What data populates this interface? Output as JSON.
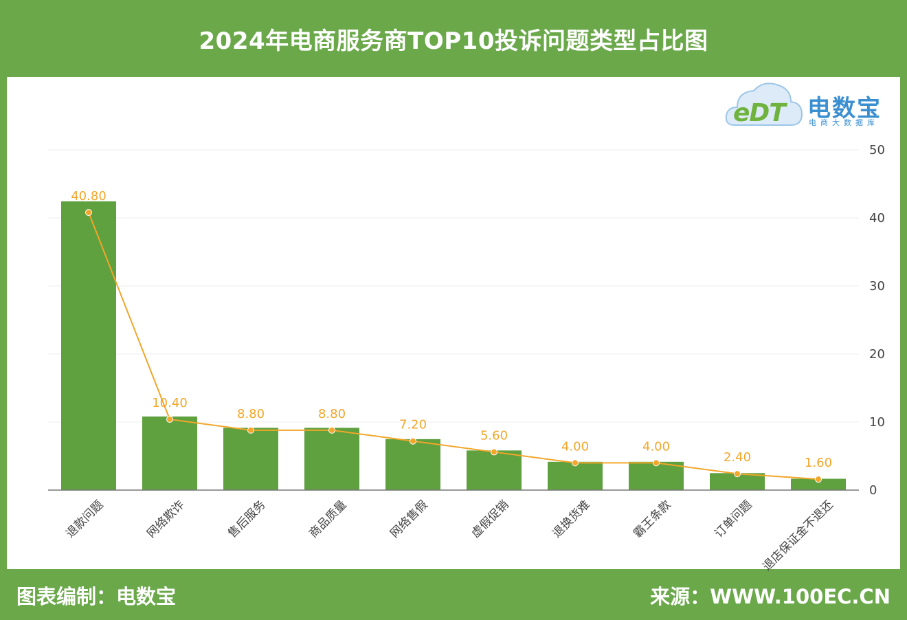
{
  "title": "2024年电商服务商TOP10投诉问题类型占比图",
  "footer": {
    "left": "图表编制：电数宝",
    "right": "来源：WWW.100EC.CN"
  },
  "logo": {
    "mark": "eDT",
    "name": "电数宝",
    "tagline": "电商大数据库"
  },
  "colors": {
    "frame": "#6aa84a",
    "bar": "#5fa03f",
    "line": "#f2a62a"
  },
  "chart_data": {
    "type": "bar",
    "categories": [
      "退款问题",
      "网络欺诈",
      "售后服务",
      "商品质量",
      "网络售假",
      "虚假促销",
      "退换货难",
      "霸王条款",
      "订单问题",
      "退店保证金不退还"
    ],
    "values": [
      40.8,
      10.4,
      8.8,
      8.8,
      7.2,
      5.6,
      4.0,
      4.0,
      2.4,
      1.6
    ],
    "value_labels": [
      "40.80",
      "10.40",
      "8.80",
      "8.80",
      "7.20",
      "5.60",
      "4.00",
      "4.00",
      "2.40",
      "1.60"
    ],
    "line_overlay": true,
    "ylim": [
      0,
      50
    ],
    "yticks": [
      "0",
      "10",
      "20",
      "30",
      "40",
      "50"
    ],
    "y_axis_side": "right",
    "grid": true,
    "title": "2024年电商服务商TOP10投诉问题类型占比图"
  }
}
